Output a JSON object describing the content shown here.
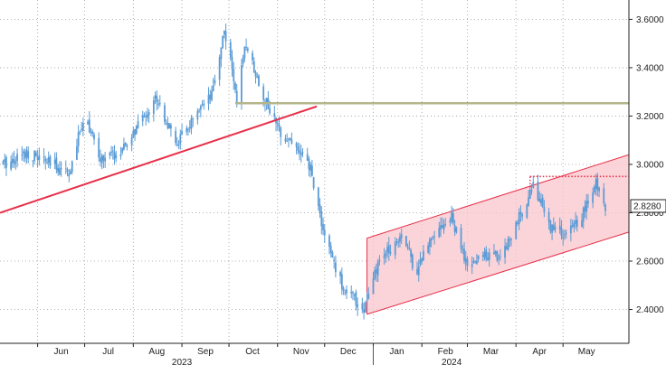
{
  "chart_data": {
    "type": "candlestick",
    "title": "",
    "xlabel": "",
    "ylabel": "",
    "y_axis_side": "right",
    "ylim": [
      2.26,
      3.68
    ],
    "grid": true,
    "y_ticks": [
      "2.4000",
      "2.6000",
      "2.8000",
      "3.0000",
      "3.2000",
      "3.4000",
      "3.6000"
    ],
    "x_months": [
      {
        "label": "Jun",
        "date": "2023-06-01"
      },
      {
        "label": "Jul",
        "date": "2023-07-01"
      },
      {
        "label": "Aug",
        "date": "2023-08-01"
      },
      {
        "label": "Sep",
        "date": "2023-09-01"
      },
      {
        "label": "Oct",
        "date": "2023-10-01"
      },
      {
        "label": "Nov",
        "date": "2023-11-01"
      },
      {
        "label": "Dec",
        "date": "2023-12-01"
      },
      {
        "label": "Jan",
        "date": "2024-01-01"
      },
      {
        "label": "Feb",
        "date": "2024-02-01"
      },
      {
        "label": "Mar",
        "date": "2024-03-01"
      },
      {
        "label": "Apr",
        "date": "2024-04-01"
      },
      {
        "label": "May",
        "date": "2024-05-01"
      }
    ],
    "x_years": [
      {
        "label": "2023",
        "date": "2023-09-01"
      },
      {
        "label": "2024",
        "date": "2024-02-20"
      }
    ],
    "last_price": {
      "label": "2.8280",
      "value": 2.828
    },
    "colors": {
      "up": "#5b9bd5",
      "down": "#5b9bd5",
      "trendline": "#e8304a",
      "resistance": "#b5b58a",
      "channel_fill": "#f9c6cc",
      "channel_edge": "#e8304a",
      "grid": "#9a9a9a"
    },
    "price_path": [
      {
        "date": "2023-05-10",
        "value": 3.0
      },
      {
        "date": "2023-05-25",
        "value": 3.05
      },
      {
        "date": "2023-06-10",
        "value": 3.0
      },
      {
        "date": "2023-06-22",
        "value": 2.97
      },
      {
        "date": "2023-07-01",
        "value": 3.22
      },
      {
        "date": "2023-07-10",
        "value": 3.02
      },
      {
        "date": "2023-07-25",
        "value": 3.05
      },
      {
        "date": "2023-08-06",
        "value": 3.18
      },
      {
        "date": "2023-08-16",
        "value": 3.28
      },
      {
        "date": "2023-08-28",
        "value": 3.08
      },
      {
        "date": "2023-09-08",
        "value": 3.18
      },
      {
        "date": "2023-09-20",
        "value": 3.28
      },
      {
        "date": "2023-09-28",
        "value": 3.56
      },
      {
        "date": "2023-10-06",
        "value": 3.28
      },
      {
        "date": "2023-10-12",
        "value": 3.5
      },
      {
        "date": "2023-10-22",
        "value": 3.3
      },
      {
        "date": "2023-11-01",
        "value": 3.15
      },
      {
        "date": "2023-11-12",
        "value": 3.08
      },
      {
        "date": "2023-11-22",
        "value": 2.98
      },
      {
        "date": "2023-12-01",
        "value": 2.7
      },
      {
        "date": "2023-12-12",
        "value": 2.5
      },
      {
        "date": "2023-12-26",
        "value": 2.4
      },
      {
        "date": "2024-01-05",
        "value": 2.6
      },
      {
        "date": "2024-01-20",
        "value": 2.72
      },
      {
        "date": "2024-01-28",
        "value": 2.55
      },
      {
        "date": "2024-02-08",
        "value": 2.72
      },
      {
        "date": "2024-02-20",
        "value": 2.78
      },
      {
        "date": "2024-03-01",
        "value": 2.57
      },
      {
        "date": "2024-03-12",
        "value": 2.63
      },
      {
        "date": "2024-03-22",
        "value": 2.62
      },
      {
        "date": "2024-04-02",
        "value": 2.76
      },
      {
        "date": "2024-04-12",
        "value": 2.92
      },
      {
        "date": "2024-04-22",
        "value": 2.75
      },
      {
        "date": "2024-05-03",
        "value": 2.7
      },
      {
        "date": "2024-05-14",
        "value": 2.8
      },
      {
        "date": "2024-05-22",
        "value": 2.92
      },
      {
        "date": "2024-05-28",
        "value": 2.83
      }
    ],
    "trendline": {
      "from": {
        "date": "2023-05-08",
        "value": 2.8
      },
      "to": {
        "date": "2023-11-26",
        "value": 3.24
      }
    },
    "resistance_line": {
      "from_date": "2023-10-05",
      "to_date": "2024-06-12",
      "value": 3.253
    },
    "channel": {
      "start_date": "2023-12-28",
      "end_date": "2024-06-12",
      "upper": [
        2.695,
        3.04
      ],
      "lower": [
        2.38,
        2.72
      ]
    },
    "dotted_level": {
      "from_date": "2024-04-10",
      "to_date": "2024-06-12",
      "value": 2.95
    }
  }
}
